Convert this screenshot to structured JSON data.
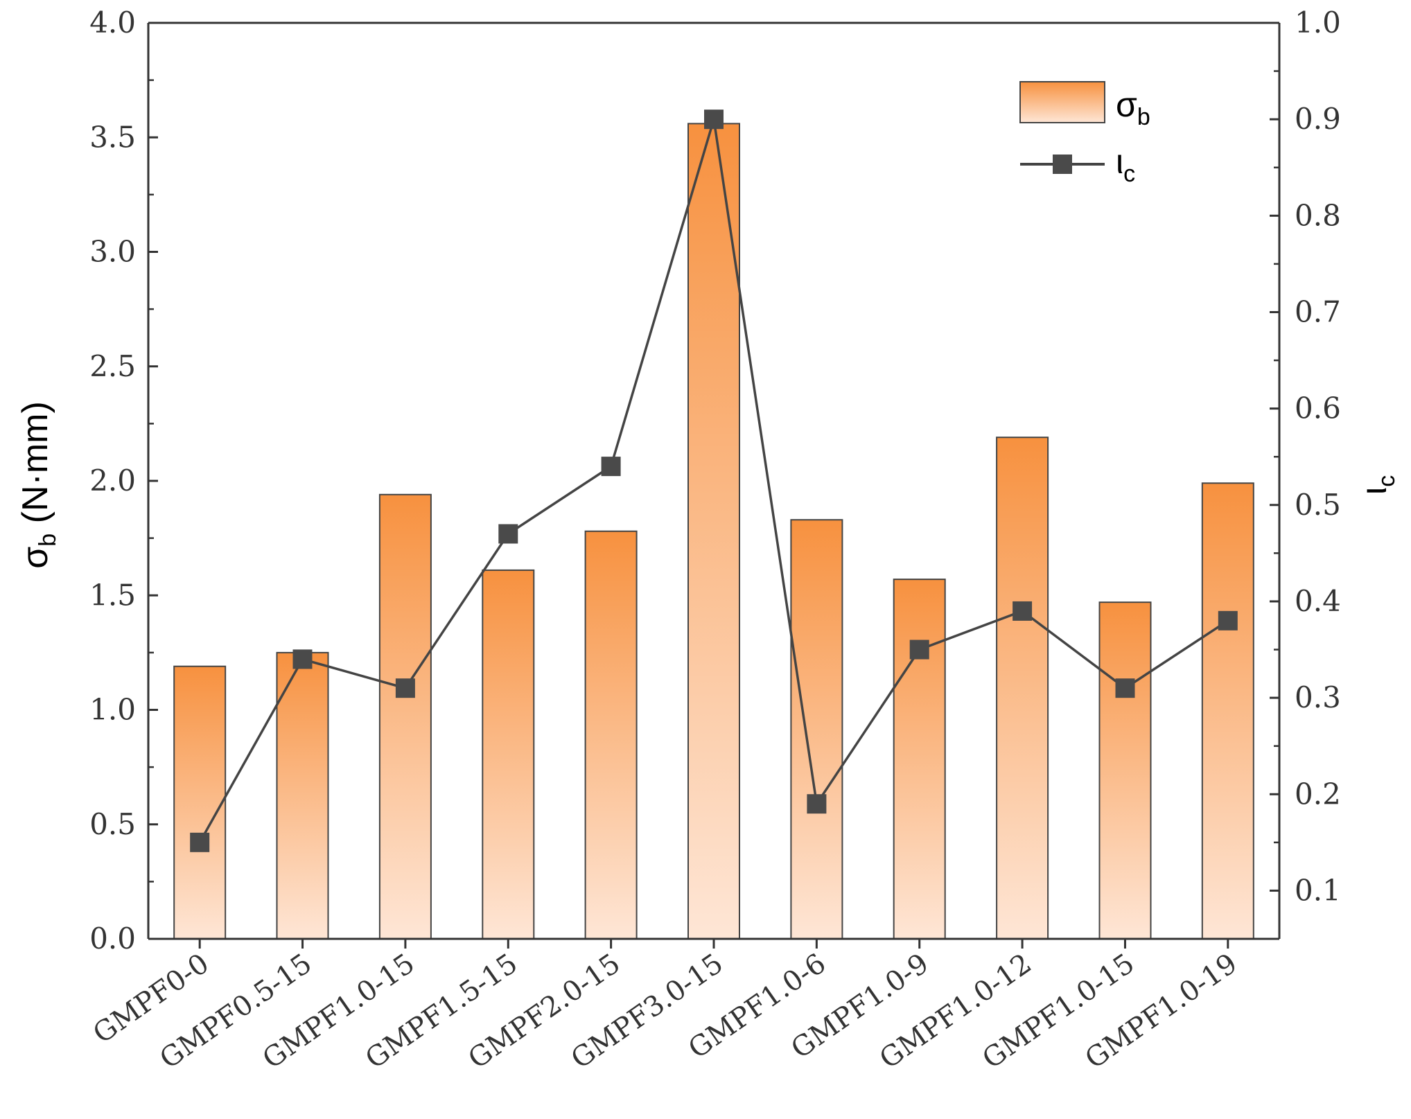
{
  "chart_data": {
    "type": "bar+line",
    "categories": [
      "GMPF0-0",
      "GMPF0.5-15",
      "GMPF1.0-15",
      "GMPF1.5-15",
      "GMPF2.0-15",
      "GMPF3.0-15",
      "GMPF1.0-6",
      "GMPF1.0-9",
      "GMPF1.0-12",
      "GMPF1.0-15",
      "GMPF1.0-19"
    ],
    "series": [
      {
        "name": "σ_b",
        "type": "bar",
        "axis": "left",
        "values": [
          1.19,
          1.25,
          1.94,
          1.61,
          1.78,
          3.56,
          1.83,
          1.57,
          2.19,
          1.47,
          1.99
        ]
      },
      {
        "name": "ι_c",
        "type": "line",
        "axis": "right",
        "values": [
          0.15,
          0.34,
          0.31,
          0.47,
          0.54,
          0.9,
          0.19,
          0.35,
          0.39,
          0.31,
          0.38
        ]
      }
    ],
    "y_left": {
      "label_main": "σ",
      "label_sub": "b",
      "label_unit": " (N·mm)",
      "ylim": [
        0,
        4
      ],
      "ticks": [
        "0.0",
        "0.5",
        "1.0",
        "1.5",
        "2.0",
        "2.5",
        "3.0",
        "3.5",
        "4.0"
      ]
    },
    "y_right": {
      "label_main": "ι",
      "label_sub": "c",
      "ylim": [
        0.05,
        1.0
      ],
      "ticks": [
        "0.1",
        "0.2",
        "0.3",
        "0.4",
        "0.5",
        "0.6",
        "0.7",
        "0.8",
        "0.9",
        "1.0"
      ]
    },
    "legend": {
      "position": "top-right",
      "entries": [
        {
          "main": "σ",
          "sub": "b"
        },
        {
          "main": "ι",
          "sub": "c"
        }
      ]
    },
    "colors": {
      "bar_top": "#f7913f",
      "bar_bottom": "#fee6d6",
      "bar_edge": "#444444",
      "line": "#444444",
      "marker": "#4a4a4a",
      "axis": "#333333"
    }
  }
}
